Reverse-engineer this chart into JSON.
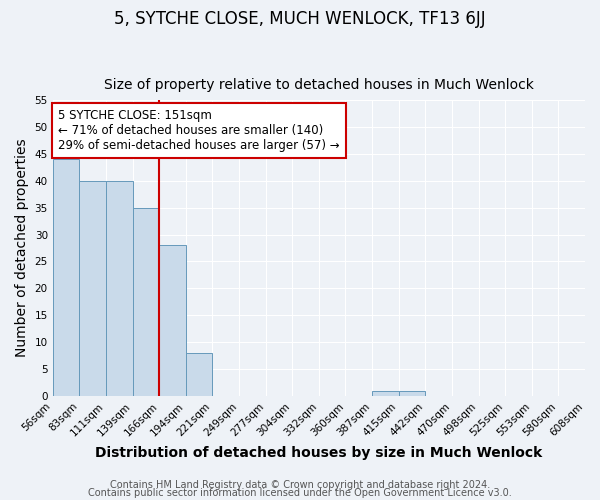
{
  "title": "5, SYTCHE CLOSE, MUCH WENLOCK, TF13 6JJ",
  "subtitle": "Size of property relative to detached houses in Much Wenlock",
  "xlabel": "Distribution of detached houses by size in Much Wenlock",
  "ylabel": "Number of detached properties",
  "bin_labels": [
    "56sqm",
    "83sqm",
    "111sqm",
    "139sqm",
    "166sqm",
    "194sqm",
    "221sqm",
    "249sqm",
    "277sqm",
    "304sqm",
    "332sqm",
    "360sqm",
    "387sqm",
    "415sqm",
    "442sqm",
    "470sqm",
    "498sqm",
    "525sqm",
    "553sqm",
    "580sqm",
    "608sqm"
  ],
  "bar_values": [
    44,
    40,
    40,
    35,
    28,
    8,
    0,
    0,
    0,
    0,
    0,
    0,
    1,
    1,
    0,
    0,
    0,
    0,
    0,
    0
  ],
  "bar_color": "#c9daea",
  "bar_edge_color": "#6699bb",
  "vline_x": 3.5,
  "vline_color": "#cc0000",
  "ylim": [
    0,
    55
  ],
  "yticks": [
    0,
    5,
    10,
    15,
    20,
    25,
    30,
    35,
    40,
    45,
    50,
    55
  ],
  "annotation_title": "5 SYTCHE CLOSE: 151sqm",
  "annotation_line1": "← 71% of detached houses are smaller (140)",
  "annotation_line2": "29% of semi-detached houses are larger (57) →",
  "annotation_box_color": "#cc0000",
  "footer_line1": "Contains HM Land Registry data © Crown copyright and database right 2024.",
  "footer_line2": "Contains public sector information licensed under the Open Government Licence v3.0.",
  "background_color": "#eef2f7",
  "grid_color": "white",
  "title_fontsize": 12,
  "subtitle_fontsize": 10,
  "axis_label_fontsize": 10,
  "tick_fontsize": 7.5,
  "annotation_fontsize": 8.5,
  "footer_fontsize": 7
}
